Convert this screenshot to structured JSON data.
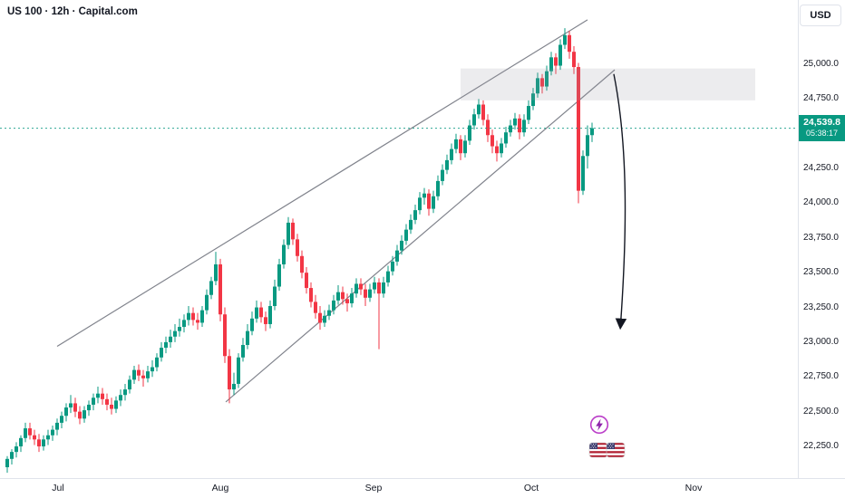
{
  "header": {
    "symbol_title": "US 100 · 12h · Capital.com"
  },
  "toolbar": {
    "currency_label": "USD"
  },
  "price_axis": {
    "labels": [
      {
        "text": "25,000.0",
        "value": 25000
      },
      {
        "text": "24,750.0",
        "value": 24750
      },
      {
        "text": "24,250.0",
        "value": 24250
      },
      {
        "text": "24,000.0",
        "value": 24000
      },
      {
        "text": "23,750.0",
        "value": 23750
      },
      {
        "text": "23,500.0",
        "value": 23500
      },
      {
        "text": "23,250.0",
        "value": 23250
      },
      {
        "text": "23,000.0",
        "value": 23000
      },
      {
        "text": "22,750.0",
        "value": 22750
      },
      {
        "text": "22,500.0",
        "value": 22500
      },
      {
        "text": "22,250.0",
        "value": 22250
      }
    ],
    "badge": {
      "price": "24,539.8",
      "countdown": "05:38:17"
    }
  },
  "colors": {
    "up": "#089981",
    "down": "#F23645",
    "trendline": "#80838c",
    "zone": "#9598a1",
    "arrow": "#131722",
    "axis_text": "#131722",
    "border": "#e0e3eb",
    "badge_bg": "#089981"
  },
  "chart_data": {
    "type": "candlestick",
    "symbol": "US 100",
    "interval": "12h",
    "exchange": "Capital.com",
    "currency": "USD",
    "last_price": 24539.8,
    "ylim": [
      22070,
      25460
    ],
    "grid": false,
    "months": [
      {
        "label": "Jul",
        "index": 11.2
      },
      {
        "label": "Aug",
        "index": 47
      },
      {
        "label": "Sep",
        "index": 80.8
      },
      {
        "label": "Oct",
        "index": 115.6
      },
      {
        "label": "Nov",
        "index": 151.4
      }
    ],
    "ohlc": [
      [
        22100,
        22180,
        22060,
        22160
      ],
      [
        22160,
        22230,
        22120,
        22210
      ],
      [
        22210,
        22280,
        22170,
        22250
      ],
      [
        22250,
        22330,
        22210,
        22310
      ],
      [
        22310,
        22420,
        22280,
        22380
      ],
      [
        22380,
        22420,
        22300,
        22330
      ],
      [
        22330,
        22370,
        22260,
        22300
      ],
      [
        22300,
        22340,
        22210,
        22250
      ],
      [
        22250,
        22330,
        22220,
        22300
      ],
      [
        22300,
        22370,
        22260,
        22330
      ],
      [
        22330,
        22400,
        22290,
        22370
      ],
      [
        22370,
        22450,
        22330,
        22420
      ],
      [
        22420,
        22500,
        22380,
        22470
      ],
      [
        22470,
        22560,
        22430,
        22530
      ],
      [
        22530,
        22620,
        22490,
        22560
      ],
      [
        22560,
        22600,
        22460,
        22500
      ],
      [
        22500,
        22540,
        22410,
        22450
      ],
      [
        22450,
        22540,
        22420,
        22510
      ],
      [
        22510,
        22580,
        22470,
        22550
      ],
      [
        22550,
        22630,
        22510,
        22600
      ],
      [
        22600,
        22680,
        22560,
        22630
      ],
      [
        22630,
        22670,
        22550,
        22590
      ],
      [
        22590,
        22630,
        22510,
        22550
      ],
      [
        22550,
        22600,
        22480,
        22520
      ],
      [
        22520,
        22610,
        22490,
        22580
      ],
      [
        22580,
        22660,
        22540,
        22620
      ],
      [
        22620,
        22700,
        22580,
        22660
      ],
      [
        22660,
        22760,
        22630,
        22730
      ],
      [
        22730,
        22830,
        22700,
        22800
      ],
      [
        22800,
        22840,
        22720,
        22760
      ],
      [
        22760,
        22800,
        22680,
        22740
      ],
      [
        22740,
        22830,
        22710,
        22790
      ],
      [
        22790,
        22870,
        22750,
        22820
      ],
      [
        22820,
        22920,
        22790,
        22890
      ],
      [
        22890,
        23000,
        22860,
        22960
      ],
      [
        22960,
        23040,
        22920,
        23000
      ],
      [
        23000,
        23090,
        22960,
        23040
      ],
      [
        23040,
        23130,
        23000,
        23080
      ],
      [
        23080,
        23170,
        23040,
        23110
      ],
      [
        23110,
        23200,
        23070,
        23160
      ],
      [
        23160,
        23260,
        23120,
        23210
      ],
      [
        23210,
        23250,
        23120,
        23160
      ],
      [
        23160,
        23210,
        23090,
        23140
      ],
      [
        23140,
        23260,
        23110,
        23230
      ],
      [
        23230,
        23380,
        23200,
        23340
      ],
      [
        23340,
        23470,
        23310,
        23440
      ],
      [
        23440,
        23650,
        23410,
        23560
      ],
      [
        23560,
        23600,
        23150,
        23200
      ],
      [
        23200,
        23250,
        22850,
        22900
      ],
      [
        22900,
        22950,
        22560,
        22660
      ],
      [
        22660,
        22780,
        22620,
        22700
      ],
      [
        22700,
        22920,
        22670,
        22890
      ],
      [
        22890,
        23030,
        22860,
        22980
      ],
      [
        22980,
        23130,
        22950,
        23080
      ],
      [
        23080,
        23220,
        23050,
        23170
      ],
      [
        23170,
        23300,
        23140,
        23250
      ],
      [
        23250,
        23290,
        23140,
        23180
      ],
      [
        23180,
        23220,
        23080,
        23130
      ],
      [
        23130,
        23300,
        23100,
        23260
      ],
      [
        23260,
        23450,
        23230,
        23400
      ],
      [
        23400,
        23600,
        23370,
        23560
      ],
      [
        23560,
        23740,
        23530,
        23700
      ],
      [
        23700,
        23900,
        23670,
        23860
      ],
      [
        23860,
        23890,
        23700,
        23740
      ],
      [
        23740,
        23780,
        23580,
        23620
      ],
      [
        23620,
        23660,
        23460,
        23500
      ],
      [
        23500,
        23540,
        23350,
        23390
      ],
      [
        23390,
        23430,
        23250,
        23290
      ],
      [
        23290,
        23340,
        23170,
        23210
      ],
      [
        23210,
        23260,
        23090,
        23140
      ],
      [
        23140,
        23230,
        23110,
        23190
      ],
      [
        23190,
        23270,
        23160,
        23230
      ],
      [
        23230,
        23340,
        23200,
        23300
      ],
      [
        23300,
        23410,
        23270,
        23360
      ],
      [
        23360,
        23400,
        23270,
        23310
      ],
      [
        23310,
        23350,
        23220,
        23280
      ],
      [
        23280,
        23390,
        23250,
        23350
      ],
      [
        23350,
        23460,
        23320,
        23420
      ],
      [
        23420,
        23460,
        23340,
        23380
      ],
      [
        23380,
        23420,
        23260,
        23320
      ],
      [
        23320,
        23420,
        23290,
        23380
      ],
      [
        23380,
        23470,
        23350,
        23430
      ],
      [
        23430,
        23460,
        22950,
        23350
      ],
      [
        23350,
        23470,
        23320,
        23430
      ],
      [
        23430,
        23550,
        23400,
        23510
      ],
      [
        23510,
        23620,
        23480,
        23580
      ],
      [
        23580,
        23700,
        23550,
        23660
      ],
      [
        23660,
        23770,
        23630,
        23730
      ],
      [
        23730,
        23850,
        23700,
        23810
      ],
      [
        23810,
        23920,
        23780,
        23880
      ],
      [
        23880,
        23990,
        23850,
        23950
      ],
      [
        23950,
        24080,
        23920,
        24040
      ],
      [
        24040,
        24110,
        23990,
        24070
      ],
      [
        24070,
        24100,
        23910,
        23960
      ],
      [
        23960,
        24090,
        23930,
        24050
      ],
      [
        24050,
        24200,
        24020,
        24160
      ],
      [
        24160,
        24280,
        24130,
        24240
      ],
      [
        24240,
        24350,
        24210,
        24310
      ],
      [
        24310,
        24430,
        24280,
        24390
      ],
      [
        24390,
        24500,
        24360,
        24460
      ],
      [
        24460,
        24490,
        24310,
        24360
      ],
      [
        24360,
        24490,
        24330,
        24450
      ],
      [
        24450,
        24600,
        24420,
        24560
      ],
      [
        24560,
        24680,
        24530,
        24640
      ],
      [
        24640,
        24750,
        24610,
        24710
      ],
      [
        24710,
        24740,
        24560,
        24600
      ],
      [
        24600,
        24640,
        24440,
        24490
      ],
      [
        24490,
        24530,
        24360,
        24410
      ],
      [
        24410,
        24450,
        24300,
        24360
      ],
      [
        24360,
        24470,
        24330,
        24430
      ],
      [
        24430,
        24550,
        24400,
        24510
      ],
      [
        24510,
        24600,
        24480,
        24560
      ],
      [
        24560,
        24650,
        24530,
        24610
      ],
      [
        24610,
        24640,
        24460,
        24510
      ],
      [
        24510,
        24640,
        24480,
        24600
      ],
      [
        24600,
        24740,
        24570,
        24700
      ],
      [
        24700,
        24830,
        24670,
        24790
      ],
      [
        24790,
        24940,
        24760,
        24900
      ],
      [
        24900,
        24930,
        24790,
        24840
      ],
      [
        24840,
        24990,
        24810,
        24950
      ],
      [
        24950,
        25090,
        24920,
        25050
      ],
      [
        25050,
        25080,
        24930,
        24990
      ],
      [
        24990,
        25180,
        24960,
        25140
      ],
      [
        25140,
        25260,
        25110,
        25210
      ],
      [
        25210,
        25240,
        25040,
        25090
      ],
      [
        25090,
        25130,
        24930,
        24980
      ],
      [
        24980,
        25010,
        24000,
        24090
      ],
      [
        24090,
        24380,
        24060,
        24340
      ],
      [
        24340,
        24560,
        24250,
        24490
      ],
      [
        24490,
        24580,
        24440,
        24540
      ]
    ],
    "annotations": {
      "upper_trendline": {
        "from": {
          "index": 11,
          "price": 22970
        },
        "to": {
          "index": 128,
          "price": 25320
        }
      },
      "lower_trendline": {
        "from": {
          "index": 48.2,
          "price": 22570
        },
        "to": {
          "index": 134,
          "price": 24960
        }
      },
      "supply_zone": {
        "from_index": 100,
        "to_index": 165,
        "price_top": 24970,
        "price_bottom": 24740
      },
      "down_arrow": {
        "from": {
          "index": 133.8,
          "price": 24930
        },
        "to": {
          "index": 135.3,
          "price": 23130
        }
      }
    }
  }
}
